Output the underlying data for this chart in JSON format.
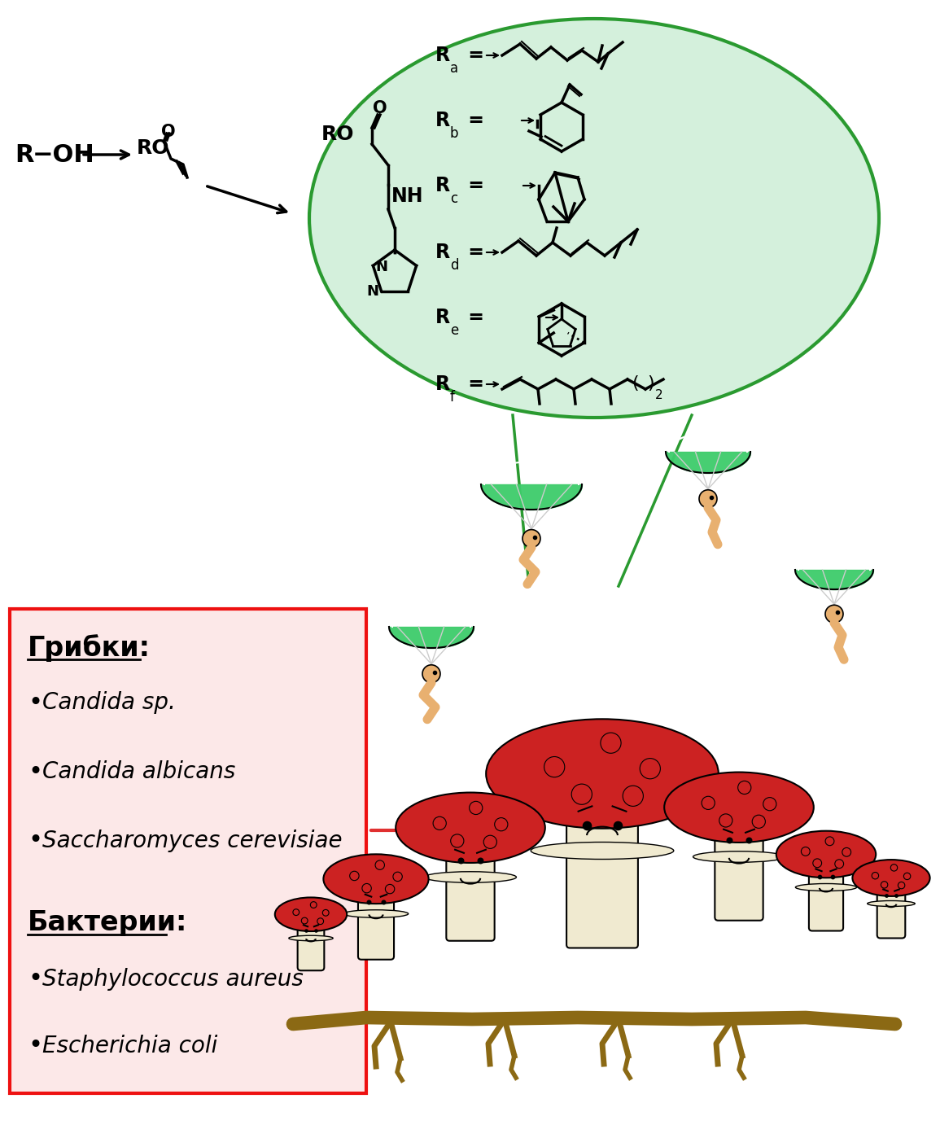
{
  "bg_color": "#ffffff",
  "oval_color": "#d4f0dc",
  "oval_border_color": "#2a9a30",
  "red_box_color": "#fce8e8",
  "red_box_border": "#ee1111",
  "arrow_color": "#e03030",
  "text_color": "#000000",
  "griby_header": "Грибки:",
  "bacteria_header": "Бактерии:",
  "fungi_list": [
    "•Candida sp.",
    "•Candida albicans",
    "•Saccharomyces cerevisiae"
  ],
  "bacteria_list": [
    "•Staphylococcus aureus",
    "•Escherichia coli"
  ],
  "green_color": "#3dbf5a",
  "parachute_green": "#3dcc6a",
  "mushroom_red": "#cc2222",
  "mushroom_cream": "#f0ead0",
  "worm_skin": "#e8b070",
  "root_color": "#8b6914"
}
